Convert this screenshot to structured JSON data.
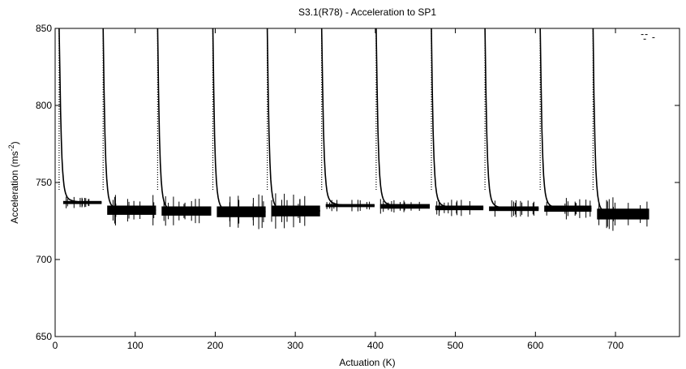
{
  "chart_data": {
    "type": "scatter",
    "title": "S3.1(R78) - Acceleration to SP1",
    "xlabel": "Actuation (K)",
    "ylabel_main": "Acceleration (ms",
    "ylabel_sup": "-2",
    "ylabel_end": ")",
    "xlim": [
      0,
      780
    ],
    "ylim": [
      650,
      850
    ],
    "x_ticks": [
      0,
      100,
      200,
      300,
      400,
      500,
      600,
      700
    ],
    "y_ticks": [
      650,
      700,
      750,
      800,
      850
    ],
    "grid": false,
    "legend": "none",
    "color": "#000000",
    "spike_x": [
      5,
      60,
      128,
      197,
      265,
      333,
      401,
      470,
      537,
      606,
      672
    ],
    "segments": [
      {
        "x_start": 5,
        "x_end": 58,
        "level": 737,
        "band": 2
      },
      {
        "x_start": 60,
        "x_end": 126,
        "level": 732,
        "band": 6
      },
      {
        "x_start": 128,
        "x_end": 195,
        "level": 731.5,
        "band": 6
      },
      {
        "x_start": 197,
        "x_end": 263,
        "level": 731,
        "band": 7
      },
      {
        "x_start": 265,
        "x_end": 331,
        "level": 731.5,
        "band": 7
      },
      {
        "x_start": 333,
        "x_end": 399,
        "level": 735,
        "band": 2
      },
      {
        "x_start": 401,
        "x_end": 468,
        "level": 734.5,
        "band": 3
      },
      {
        "x_start": 470,
        "x_end": 535,
        "level": 733.5,
        "band": 3
      },
      {
        "x_start": 537,
        "x_end": 604,
        "level": 733,
        "band": 3
      },
      {
        "x_start": 606,
        "x_end": 670,
        "level": 733,
        "band": 4
      },
      {
        "x_start": 672,
        "x_end": 742,
        "level": 729.5,
        "band": 7
      }
    ],
    "top_dashes": [
      {
        "x": 732,
        "y": 846
      },
      {
        "x": 735,
        "y": 843
      },
      {
        "x": 737,
        "y": 846
      },
      {
        "x": 746,
        "y": 844
      }
    ]
  }
}
